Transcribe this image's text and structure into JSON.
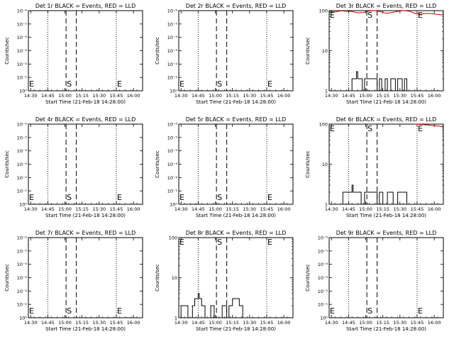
{
  "shared": {
    "xlabel": "Start Time (21-Feb-18 14:28:00)",
    "ylabel": "Counts/sec",
    "x_ticks": [
      "14:30",
      "14:45",
      "15:00",
      "15:15",
      "15:30",
      "15:45",
      "16:00"
    ],
    "x_tick_minutes": [
      2,
      17,
      32,
      47,
      62,
      77,
      92
    ],
    "xlim_minutes": [
      0,
      100
    ],
    "dotted_lines_minutes": [
      17,
      77
    ],
    "dashed_lines_minutes": [
      33,
      42
    ],
    "marker_labels": {
      "start": "S",
      "end": "E"
    },
    "marker_minutes": {
      "start": 33,
      "end": 77
    }
  },
  "chart_data": [
    {
      "type": "line",
      "title": "Det 1r BLACK = Events, RED = LLD",
      "yscale": "log",
      "ylim": [
        1,
        1e-06
      ],
      "y_ticks": [
        "10⁰",
        "10⁻¹",
        "10⁻²",
        "10⁻³",
        "10⁻⁴",
        "10⁻⁵",
        "10⁻⁶"
      ],
      "markers_at_bottom": true,
      "series": []
    },
    {
      "type": "line",
      "title": "Det 2r BLACK = Events, RED = LLD",
      "yscale": "log",
      "ylim": [
        1,
        1e-06
      ],
      "y_ticks": [
        "10⁰",
        "10⁻¹",
        "10⁻²",
        "10⁻³",
        "10⁻⁴",
        "10⁻⁵",
        "10⁻⁶"
      ],
      "markers_at_bottom": true,
      "series": []
    },
    {
      "type": "line",
      "title": "Det 3r BLACK = Events, RED = LLD",
      "yscale": "log",
      "ylim": [
        1,
        100
      ],
      "y_ticks": [
        "1",
        "10",
        "100"
      ],
      "markers_at_bottom": false,
      "series": [
        {
          "color": "#000000",
          "x": [
            20,
            20,
            24,
            24,
            25,
            25,
            29,
            29,
            31,
            31,
            42,
            42,
            44,
            44,
            46,
            46,
            49,
            49,
            51,
            51,
            54,
            54,
            58,
            58,
            60,
            60,
            64,
            64,
            66,
            66,
            68,
            68
          ],
          "y": [
            1,
            2,
            2,
            3,
            3,
            2,
            2,
            1,
            1,
            2,
            2,
            1,
            1,
            2,
            2,
            1,
            1,
            2,
            2,
            1,
            1,
            2,
            2,
            1,
            1,
            2,
            2,
            1,
            1,
            2,
            2,
            1
          ]
        },
        {
          "color": "#cc0000",
          "x": [
            0,
            5,
            10,
            15,
            20,
            25,
            30,
            35,
            40,
            45,
            50,
            55,
            60,
            65,
            70,
            75,
            80,
            85,
            90,
            95,
            100
          ],
          "y": [
            96,
            92,
            99,
            97,
            95,
            88,
            90,
            98,
            100,
            94,
            86,
            90,
            96,
            100,
            97,
            85,
            82,
            86,
            84,
            80,
            78
          ]
        }
      ]
    },
    {
      "type": "line",
      "title": "Det 4r BLACK = Events, RED = LLD",
      "yscale": "log",
      "ylim": [
        1,
        1e-06
      ],
      "y_ticks": [
        "10⁰",
        "10⁻¹",
        "10⁻²",
        "10⁻³",
        "10⁻⁴",
        "10⁻⁵",
        "10⁻⁶"
      ],
      "markers_at_bottom": true,
      "series": []
    },
    {
      "type": "line",
      "title": "Det 5r BLACK = Events, RED = LLD",
      "yscale": "log",
      "ylim": [
        1,
        1e-06
      ],
      "y_ticks": [
        "10⁰",
        "10⁻¹",
        "10⁻²",
        "10⁻³",
        "10⁻⁴",
        "10⁻⁵",
        "10⁻⁶"
      ],
      "markers_at_bottom": true,
      "series": []
    },
    {
      "type": "line",
      "title": "Det 6r BLACK = Events, RED = LLD",
      "yscale": "log",
      "ylim": [
        1,
        100
      ],
      "y_ticks": [
        "1",
        "10",
        "100"
      ],
      "markers_at_bottom": false,
      "series": [
        {
          "color": "#000000",
          "x": [
            12,
            12,
            20,
            20,
            21,
            21,
            28,
            28,
            31,
            31,
            42,
            42,
            44,
            44,
            47,
            47,
            51,
            51,
            56,
            56,
            60,
            60,
            68,
            68
          ],
          "y": [
            1,
            2,
            2,
            3,
            3,
            2,
            2,
            1,
            1,
            2,
            2,
            1,
            1,
            2,
            2,
            1,
            1,
            2,
            2,
            1,
            1,
            2,
            2,
            1
          ]
        },
        {
          "color": "#cc0000",
          "x": [
            76,
            80,
            85,
            90,
            95,
            100
          ],
          "y": [
            100,
            98,
            96,
            92,
            90,
            86
          ]
        }
      ]
    },
    {
      "type": "line",
      "title": "Det 7r BLACK = Events, RED = LLD",
      "yscale": "log",
      "ylim": [
        1,
        1e-06
      ],
      "y_ticks": [
        "10⁰",
        "10⁻¹",
        "10⁻²",
        "10⁻³",
        "10⁻⁴",
        "10⁻⁵",
        "10⁻⁶"
      ],
      "markers_at_bottom": true,
      "series": []
    },
    {
      "type": "line",
      "title": "Det 8r BLACK = Events, RED = LLD",
      "yscale": "log",
      "ylim": [
        1,
        100
      ],
      "y_ticks": [
        "1",
        "10",
        "100"
      ],
      "markers_at_bottom": false,
      "series": [
        {
          "color": "#000000",
          "x": [
            2,
            2,
            8,
            8,
            12,
            12,
            14,
            14,
            17,
            17,
            18,
            18,
            20,
            20,
            23,
            23,
            28,
            28,
            31,
            31,
            38,
            38,
            42,
            42,
            44,
            44,
            47,
            47,
            53,
            53,
            56,
            56
          ],
          "y": [
            1,
            2,
            2,
            1,
            1,
            2,
            2,
            3,
            3,
            4,
            4,
            3,
            3,
            2,
            2,
            1,
            1,
            2,
            2,
            1,
            1,
            2,
            2,
            1,
            1,
            2,
            2,
            3,
            3,
            2,
            2,
            1
          ]
        }
      ]
    },
    {
      "type": "line",
      "title": "Det 9r BLACK = Events, RED = LLD",
      "yscale": "log",
      "ylim": [
        1,
        1e-06
      ],
      "y_ticks": [
        "10⁰",
        "10⁻¹",
        "10⁻²",
        "10⁻³",
        "10⁻⁴",
        "10⁻⁵",
        "10⁻⁶"
      ],
      "markers_at_bottom": true,
      "series": []
    }
  ]
}
